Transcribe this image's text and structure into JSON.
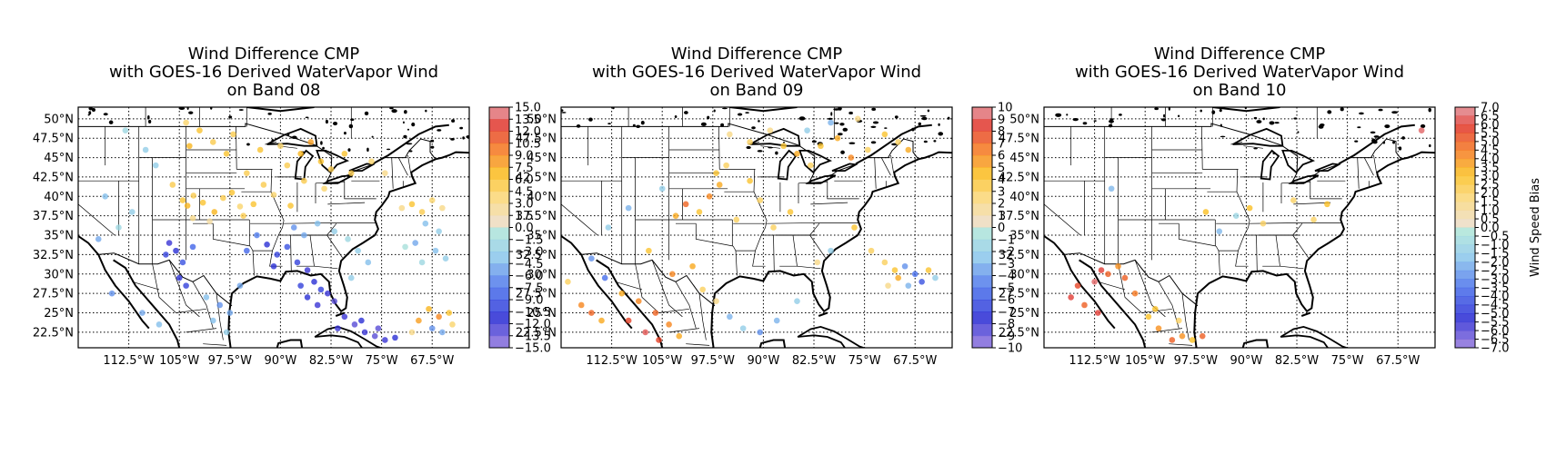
{
  "figure": {
    "panels": [
      {
        "title": [
          "Wind Difference CMP",
          "with GOES-16 Derived WaterVapor Wind",
          "on Band 08"
        ],
        "colorbar_ticks": [
          "15.0",
          "13.5",
          "12.0",
          "10.5",
          "9.0",
          "7.5",
          "6.0",
          "4.5",
          "3.0",
          "1.5",
          "0.0",
          "−1.5",
          "−3.0",
          "−4.5",
          "−6.0",
          "−7.5",
          "−9.0",
          "−10.5",
          "−12.0",
          "−13.5",
          "−15.0"
        ],
        "colorbar_label": ""
      },
      {
        "title": [
          "Wind Difference CMP",
          "with GOES-16 Derived WaterVapor Wind",
          "on Band 09"
        ],
        "colorbar_ticks": [
          "10",
          "9",
          "8",
          "7",
          "6",
          "5",
          "4",
          "3",
          "2",
          "1",
          "0",
          "−1",
          "−2",
          "−3",
          "−4",
          "−5",
          "−6",
          "−7",
          "−8",
          "−9",
          "−10"
        ],
        "colorbar_label": ""
      },
      {
        "title": [
          "Wind Difference CMP",
          "with GOES-16 Derived WaterVapor Wind",
          "on Band 10"
        ],
        "colorbar_ticks": [
          "7.0",
          "6.5",
          "6.0",
          "5.5",
          "5.0",
          "4.5",
          "4.0",
          "3.5",
          "3.0",
          "2.5",
          "2.0",
          "1.5",
          "1.0",
          "0.5",
          "0.0",
          "−0.5",
          "−1.0",
          "−1.5",
          "−2.0",
          "−2.5",
          "−3.0",
          "−3.5",
          "−4.0",
          "−4.5",
          "−5.0",
          "−5.5",
          "−6.0",
          "−6.5",
          "−7.0"
        ],
        "colorbar_label": "Wind Speed Bias"
      }
    ],
    "x_ticks": [
      "112.5°W",
      "105°W",
      "97.5°W",
      "90°W",
      "82.5°W",
      "75°W",
      "67.5°W"
    ],
    "y_ticks": [
      "50°N",
      "47.5°N",
      "45°N",
      "42.5°N",
      "40°N",
      "37.5°N",
      "35°N",
      "32.5°N",
      "30°N",
      "27.5°N",
      "25°N",
      "22.5°N"
    ]
  },
  "chart_data": [
    {
      "type": "scatter",
      "title": "Wind Difference CMP with GOES-16 Derived WaterVapor Wind on Band 08",
      "xlim": [
        -120,
        -62
      ],
      "ylim": [
        20.5,
        51.5
      ],
      "x_ticks": [
        -112.5,
        -105,
        -97.5,
        -90,
        -82.5,
        -75,
        -67.5
      ],
      "y_ticks": [
        50,
        47.5,
        45,
        42.5,
        40,
        37.5,
        35,
        32.5,
        30,
        27.5,
        25,
        22.5
      ],
      "grid": true,
      "colorbar": {
        "min": -15.0,
        "max": 15.0,
        "step": 1.5,
        "label": ""
      },
      "points": [
        [
          -104.5,
          39.5,
          6
        ],
        [
          -103.8,
          38.8,
          7
        ],
        [
          -102.9,
          40.1,
          5
        ],
        [
          -101.5,
          39.2,
          6
        ],
        [
          -99.8,
          38.0,
          7
        ],
        [
          -98.5,
          39.8,
          5
        ],
        [
          -97.2,
          40.5,
          6
        ],
        [
          -96.0,
          38.7,
          4
        ],
        [
          -103.0,
          37.2,
          3
        ],
        [
          -100.5,
          36.8,
          2
        ],
        [
          -106.0,
          41.5,
          5
        ],
        [
          -95.5,
          37.5,
          5
        ],
        [
          -94.0,
          39.0,
          6
        ],
        [
          -92.5,
          41.5,
          5
        ],
        [
          -91.0,
          40.2,
          4
        ],
        [
          -88.5,
          38.8,
          6
        ],
        [
          -103.5,
          46.5,
          7
        ],
        [
          -102.0,
          48.5,
          6
        ],
        [
          -100.0,
          47.0,
          5
        ],
        [
          -98.0,
          45.5,
          6
        ],
        [
          -104.0,
          49.5,
          4
        ],
        [
          -97.0,
          48.0,
          5
        ],
        [
          -85.5,
          47.0,
          8
        ],
        [
          -87.0,
          45.5,
          7
        ],
        [
          -84.0,
          44.5,
          6
        ],
        [
          -82.5,
          43.5,
          5
        ],
        [
          -80.5,
          45.5,
          6
        ],
        [
          -86.5,
          42.0,
          5
        ],
        [
          -83.5,
          41.0,
          4
        ],
        [
          -79.5,
          43.0,
          5
        ],
        [
          -76.5,
          44.5,
          4
        ],
        [
          -74.5,
          43.0,
          3
        ],
        [
          -92.0,
          33.8,
          -11
        ],
        [
          -90.5,
          32.5,
          -10
        ],
        [
          -89.0,
          33.5,
          -9
        ],
        [
          -91.0,
          31.0,
          -11
        ],
        [
          -87.5,
          31.5,
          -10
        ],
        [
          -86.0,
          30.5,
          -12
        ],
        [
          -85.0,
          29.0,
          -11
        ],
        [
          -84.0,
          28.0,
          -10
        ],
        [
          -83.0,
          27.5,
          -12
        ],
        [
          -82.0,
          26.5,
          -13
        ],
        [
          -84.5,
          26.0,
          -12
        ],
        [
          -86.0,
          27.0,
          -11
        ],
        [
          -87.0,
          28.5,
          -10
        ],
        [
          -80.5,
          24.5,
          -12
        ],
        [
          -79.0,
          23.5,
          -13
        ],
        [
          -77.5,
          22.5,
          -12
        ],
        [
          -76.0,
          22.0,
          -13
        ],
        [
          -74.5,
          21.5,
          -12
        ],
        [
          -73.0,
          21.8,
          -11
        ],
        [
          -81.5,
          23.0,
          -12
        ],
        [
          -78.0,
          24.0,
          -11
        ],
        [
          -75.5,
          23.0,
          -13
        ],
        [
          -106.5,
          34.0,
          -12
        ],
        [
          -105.5,
          33.0,
          -11
        ],
        [
          -107.0,
          32.5,
          -10
        ],
        [
          -104.5,
          31.5,
          -9
        ],
        [
          -103.0,
          33.5,
          -8
        ],
        [
          -105.0,
          29.5,
          -11
        ],
        [
          -104.0,
          28.5,
          -10
        ],
        [
          -99.0,
          26.0,
          -6
        ],
        [
          -97.5,
          25.0,
          -5
        ],
        [
          -100.0,
          24.0,
          -4
        ],
        [
          -98.0,
          22.5,
          -3
        ],
        [
          -101.0,
          27.0,
          -4
        ],
        [
          -96.0,
          28.5,
          -5
        ],
        [
          -72.0,
          38.5,
          3
        ],
        [
          -70.5,
          39.0,
          6
        ],
        [
          -69.0,
          38.0,
          5
        ],
        [
          -67.5,
          39.5,
          4
        ],
        [
          -66.0,
          38.5,
          3
        ],
        [
          -68.5,
          36.5,
          -4
        ],
        [
          -66.5,
          35.5,
          -3
        ],
        [
          -70.0,
          34.0,
          -5
        ],
        [
          -67.0,
          33.0,
          -4
        ],
        [
          -65.5,
          32.0,
          -3
        ],
        [
          -69.0,
          31.5,
          -2
        ],
        [
          -71.5,
          33.5,
          -1
        ],
        [
          -68.0,
          25.5,
          7
        ],
        [
          -66.5,
          24.5,
          9
        ],
        [
          -65.0,
          25.0,
          6
        ],
        [
          -69.5,
          24.0,
          8
        ],
        [
          -67.5,
          23.0,
          -6
        ],
        [
          -66.0,
          22.5,
          -5
        ],
        [
          -64.5,
          23.5,
          4
        ],
        [
          -70.5,
          22.5,
          3
        ],
        [
          -78.5,
          33.0,
          -3
        ],
        [
          -77.0,
          31.5,
          -4
        ],
        [
          -79.5,
          29.5,
          -3
        ],
        [
          -88.0,
          36.0,
          -6
        ],
        [
          -86.5,
          35.0,
          -5
        ],
        [
          -84.5,
          36.5,
          -4
        ],
        [
          -82.0,
          35.5,
          -3
        ],
        [
          -80.0,
          34.5,
          -2
        ],
        [
          -93.5,
          35.0,
          -7
        ],
        [
          -95.0,
          33.0,
          -8
        ],
        [
          -112.0,
          38.0,
          -3
        ],
        [
          -114.0,
          36.0,
          -2
        ],
        [
          -116.0,
          40.0,
          -4
        ],
        [
          -110.0,
          46.0,
          -3
        ],
        [
          -113.0,
          48.5,
          -2
        ],
        [
          -108.5,
          44.0,
          -3
        ],
        [
          -117.0,
          34.5,
          -5
        ],
        [
          -115.0,
          27.5,
          -6
        ],
        [
          -110.5,
          25.0,
          -5
        ],
        [
          -108.0,
          23.5,
          -4
        ],
        [
          -95.0,
          43.0,
          5
        ],
        [
          -93.0,
          46.0,
          6
        ],
        [
          -90.0,
          46.5,
          4
        ],
        [
          -89.0,
          44.0,
          5
        ]
      ]
    },
    {
      "type": "scatter",
      "title": "Wind Difference CMP with GOES-16 Derived WaterVapor Wind on Band 09",
      "xlim": [
        -120,
        -62
      ],
      "ylim": [
        20.5,
        51.5
      ],
      "x_ticks": [
        -112.5,
        -105,
        -97.5,
        -90,
        -82.5,
        -75,
        -67.5
      ],
      "y_ticks": [
        50,
        47.5,
        45,
        42.5,
        40,
        37.5,
        35,
        32.5,
        30,
        27.5,
        25,
        22.5
      ],
      "grid": true,
      "colorbar": {
        "min": -10,
        "max": 10,
        "step": 1,
        "label": ""
      },
      "points": [
        [
          -87.0,
          46.5,
          4
        ],
        [
          -85.0,
          45.5,
          5
        ],
        [
          -83.0,
          44.0,
          3
        ],
        [
          -81.5,
          46.5,
          4
        ],
        [
          -79.0,
          47.5,
          5
        ],
        [
          -77.0,
          45.0,
          6
        ],
        [
          -74.5,
          46.0,
          3
        ],
        [
          -72.0,
          48.0,
          4
        ],
        [
          -89.0,
          48.5,
          2
        ],
        [
          -92.0,
          47.0,
          3
        ],
        [
          -95.0,
          48.0,
          2
        ],
        [
          -83.5,
          48.5,
          -2
        ],
        [
          -80.0,
          49.5,
          -3
        ],
        [
          -76.0,
          50.0,
          2
        ],
        [
          -70.0,
          47.0,
          3
        ],
        [
          -68.5,
          46.0,
          5
        ],
        [
          -98.0,
          40.0,
          6
        ],
        [
          -96.5,
          41.5,
          5
        ],
        [
          -99.5,
          38.0,
          4
        ],
        [
          -101.5,
          39.0,
          7
        ],
        [
          -103.0,
          37.5,
          5
        ],
        [
          -94.0,
          37.0,
          3
        ],
        [
          -92.0,
          42.0,
          4
        ],
        [
          -90.5,
          39.5,
          3
        ],
        [
          -97.0,
          43.0,
          4
        ],
        [
          -95.5,
          44.0,
          3
        ],
        [
          -105.0,
          41.0,
          -2
        ],
        [
          -110.0,
          38.5,
          -3
        ],
        [
          -113.0,
          36.0,
          -2
        ],
        [
          -115.5,
          32.0,
          -4
        ],
        [
          -113.5,
          29.5,
          -5
        ],
        [
          -111.0,
          27.5,
          5
        ],
        [
          -108.5,
          26.5,
          6
        ],
        [
          -106.0,
          25.0,
          7
        ],
        [
          -104.0,
          23.5,
          6
        ],
        [
          -102.5,
          22.0,
          5
        ],
        [
          -110.0,
          24.0,
          8
        ],
        [
          -107.5,
          22.5,
          9
        ],
        [
          -105.5,
          21.5,
          8
        ],
        [
          -99.0,
          28.0,
          3
        ],
        [
          -97.0,
          26.5,
          2
        ],
        [
          -95.0,
          24.5,
          -3
        ],
        [
          -93.0,
          23.0,
          -2
        ],
        [
          -90.5,
          22.5,
          -4
        ],
        [
          -88.0,
          24.0,
          -3
        ],
        [
          -85.0,
          26.5,
          -2
        ],
        [
          -72.0,
          31.5,
          3
        ],
        [
          -70.5,
          30.5,
          4
        ],
        [
          -69.0,
          31.0,
          -4
        ],
        [
          -67.5,
          30.0,
          -5
        ],
        [
          -66.5,
          29.0,
          -6
        ],
        [
          -68.5,
          28.5,
          -3
        ],
        [
          -70.0,
          29.5,
          5
        ],
        [
          -65.5,
          30.5,
          4
        ],
        [
          -64.5,
          29.5,
          -2
        ],
        [
          -71.5,
          28.5,
          2
        ],
        [
          -74.0,
          33.0,
          3
        ],
        [
          -76.5,
          36.0,
          4
        ],
        [
          -80.0,
          33.0,
          -2
        ],
        [
          -82.0,
          31.5,
          2
        ],
        [
          -88.5,
          36.0,
          3
        ],
        [
          -86.0,
          38.0,
          4
        ],
        [
          -117.0,
          26.0,
          6
        ],
        [
          -115.5,
          25.0,
          7
        ],
        [
          -114.0,
          24.0,
          5
        ],
        [
          -119.0,
          29.0,
          3
        ],
        [
          -100.5,
          31.0,
          5
        ],
        [
          -103.5,
          30.0,
          6
        ],
        [
          -107.0,
          33.0,
          4
        ]
      ]
    },
    {
      "type": "scatter",
      "title": "Wind Difference CMP with GOES-16 Derived WaterVapor Wind on Band 10",
      "xlim": [
        -120,
        -62
      ],
      "ylim": [
        20.5,
        51.5
      ],
      "x_ticks": [
        -112.5,
        -105,
        -97.5,
        -90,
        -82.5,
        -75,
        -67.5
      ],
      "y_ticks": [
        50,
        47.5,
        45,
        42.5,
        40,
        37.5,
        35,
        32.5,
        30,
        27.5,
        25,
        22.5
      ],
      "grid": true,
      "colorbar": {
        "min": -7.0,
        "max": 7.0,
        "step": 0.5,
        "label": "Wind Speed Bias"
      },
      "points": [
        [
          -111.5,
          30.5,
          6
        ],
        [
          -110.5,
          30.0,
          5
        ],
        [
          -112.5,
          29.0,
          6.5
        ],
        [
          -115.0,
          28.5,
          5.5
        ],
        [
          -116.0,
          27.0,
          6
        ],
        [
          -114.0,
          26.0,
          5
        ],
        [
          -112.0,
          25.0,
          6
        ],
        [
          -109.0,
          31.0,
          4
        ],
        [
          -108.0,
          29.5,
          5
        ],
        [
          -106.5,
          27.5,
          4.5
        ],
        [
          -104.5,
          24.5,
          3
        ],
        [
          -103.0,
          23.0,
          4
        ],
        [
          -101.0,
          21.5,
          5
        ],
        [
          -99.5,
          22.0,
          4
        ],
        [
          -98.0,
          21.5,
          3
        ],
        [
          -96.5,
          22.0,
          5
        ],
        [
          -100.0,
          24.0,
          2
        ],
        [
          -103.5,
          25.5,
          3
        ],
        [
          -96.0,
          38.0,
          3
        ],
        [
          -91.5,
          37.5,
          -1
        ],
        [
          -87.5,
          36.5,
          2
        ],
        [
          -89.5,
          38.5,
          3
        ],
        [
          -94.0,
          35.5,
          -2
        ],
        [
          -80.0,
          37.0,
          2
        ],
        [
          -78.0,
          39.0,
          3
        ],
        [
          -83.0,
          39.5,
          2
        ],
        [
          -64.0,
          48.5,
          6.5
        ],
        [
          -110.0,
          41.0,
          -2
        ]
      ]
    }
  ]
}
